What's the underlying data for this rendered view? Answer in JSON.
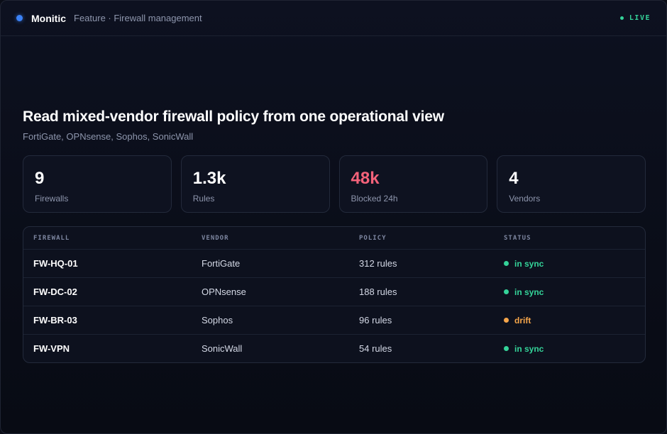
{
  "topbar": {
    "brand": "Monitic",
    "breadcrumb": "Feature · Firewall management",
    "live_label": "LIVE"
  },
  "hero": {
    "title": "Read mixed-vendor firewall policy from one operational view",
    "subtitle": "FortiGate, OPNsense, Sophos, SonicWall"
  },
  "stats": [
    {
      "value": "9",
      "label": "Firewalls"
    },
    {
      "value": "1.3k",
      "label": "Rules"
    },
    {
      "value": "48k",
      "label": "Blocked 24h",
      "highlight": true
    },
    {
      "value": "4",
      "label": "Vendors"
    }
  ],
  "table": {
    "headers": [
      "FIREWALL",
      "VENDOR",
      "POLICY",
      "STATUS"
    ],
    "rows": [
      {
        "name": "FW-HQ-01",
        "vendor": "FortiGate",
        "policy": "312 rules",
        "status": "in sync",
        "status_color": "#34d399"
      },
      {
        "name": "FW-DC-02",
        "vendor": "OPNsense",
        "policy": "188 rules",
        "status": "in sync",
        "status_color": "#34d399"
      },
      {
        "name": "FW-BR-03",
        "vendor": "Sophos",
        "policy": "96 rules",
        "status": "drift",
        "status_color": "#f5a54a"
      },
      {
        "name": "FW-VPN",
        "vendor": "SonicWall",
        "policy": "54 rules",
        "status": "in sync",
        "status_color": "#34d399"
      }
    ]
  },
  "colors": {
    "accent": "#3b82f6",
    "ok": "#34d399",
    "warn": "#f5a54a",
    "alert": "#f4627a"
  }
}
